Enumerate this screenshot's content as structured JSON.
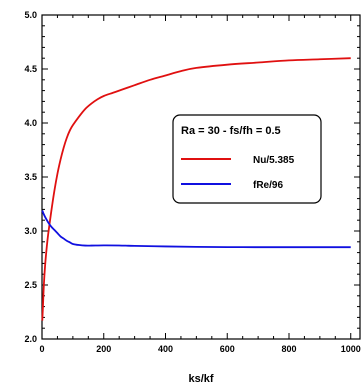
{
  "chart_data": {
    "type": "line",
    "xlabel": "ks/kf",
    "ylabel": "",
    "xlim": [
      0,
      1030
    ],
    "ylim": [
      2.0,
      5.0
    ],
    "xticks": [
      0,
      200,
      400,
      600,
      800,
      1000
    ],
    "yticks": [
      2.0,
      2.5,
      3.0,
      3.5,
      4.0,
      4.5,
      5.0
    ],
    "x_minor_step": 50,
    "y_minor_step": 0.1,
    "x_tick_labels": [
      "0",
      "200",
      "400",
      "600",
      "800",
      "1000"
    ],
    "y_tick_labels": [
      "2.0",
      "2.5",
      "3.0",
      "3.5",
      "4.0",
      "4.5",
      "5.0"
    ],
    "grid": false,
    "legend": {
      "title": "Ra = 30 -  fs/fh = 0.5",
      "placement": "center-right"
    },
    "series": [
      {
        "name": "Nu/5.385",
        "color": "#e01010",
        "x": [
          1,
          3,
          6,
          10,
          15,
          20,
          30,
          40,
          50,
          60,
          70,
          80,
          90,
          100,
          120,
          140,
          160,
          180,
          200,
          230,
          260,
          300,
          350,
          400,
          450,
          500,
          600,
          700,
          800,
          900,
          1000
        ],
        "y": [
          2.17,
          2.3,
          2.5,
          2.68,
          2.84,
          2.97,
          3.18,
          3.37,
          3.53,
          3.66,
          3.77,
          3.86,
          3.93,
          3.98,
          4.06,
          4.13,
          4.18,
          4.22,
          4.25,
          4.28,
          4.31,
          4.35,
          4.4,
          4.44,
          4.48,
          4.51,
          4.54,
          4.56,
          4.58,
          4.59,
          4.6
        ]
      },
      {
        "name": "fRe/96",
        "color": "#1010e0",
        "x": [
          1,
          5,
          10,
          20,
          30,
          40,
          50,
          60,
          70,
          80,
          90,
          100,
          120,
          140,
          160,
          200,
          250,
          300,
          400,
          500,
          600,
          700,
          800,
          900,
          1000
        ],
        "y": [
          3.19,
          3.16,
          3.13,
          3.08,
          3.04,
          3.01,
          2.98,
          2.95,
          2.93,
          2.91,
          2.895,
          2.88,
          2.87,
          2.865,
          2.865,
          2.867,
          2.866,
          2.862,
          2.857,
          2.853,
          2.851,
          2.85,
          2.85,
          2.85,
          2.85
        ]
      }
    ]
  }
}
